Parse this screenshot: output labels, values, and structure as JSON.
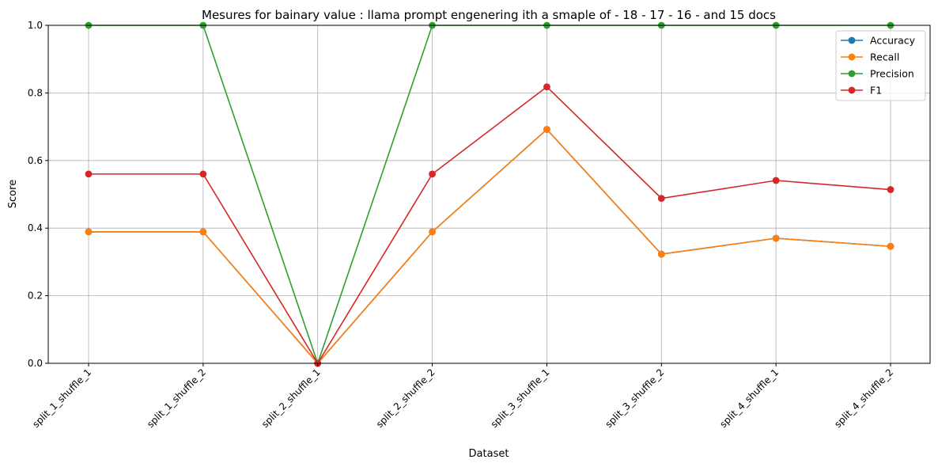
{
  "chart_data": {
    "type": "line",
    "title": "Mesures for bainary value : llama prompt engenering ith a smaple of - 18 - 17 - 16 - and 15 docs",
    "xlabel": "Dataset",
    "ylabel": "Score",
    "ylim": [
      0,
      1
    ],
    "yticks": [
      "0.0",
      "0.2",
      "0.4",
      "0.6",
      "0.8",
      "1.0"
    ],
    "grid": true,
    "legend_position": "upper right",
    "categories": [
      "split_1_shuffle_1",
      "split_1_shuffle_2",
      "split_2_shuffle_1",
      "split_2_shuffle_2",
      "split_3_shuffle_1",
      "split_3_shuffle_2",
      "split_4_shuffle_1",
      "split_4_shuffle_2"
    ],
    "series": [
      {
        "name": "Accuracy",
        "color": "#1f77b4",
        "values": [
          0.389,
          0.389,
          0.0,
          0.389,
          0.692,
          0.323,
          0.37,
          0.346
        ]
      },
      {
        "name": "Recall",
        "color": "#ff7f0e",
        "values": [
          0.389,
          0.389,
          0.0,
          0.389,
          0.692,
          0.323,
          0.37,
          0.346
        ]
      },
      {
        "name": "Precision",
        "color": "#2ca02c",
        "values": [
          1.0,
          1.0,
          0.0,
          1.0,
          1.0,
          1.0,
          1.0,
          1.0
        ]
      },
      {
        "name": "F1",
        "color": "#d62728",
        "values": [
          0.56,
          0.56,
          0.0,
          0.56,
          0.818,
          0.488,
          0.541,
          0.514
        ]
      }
    ]
  }
}
